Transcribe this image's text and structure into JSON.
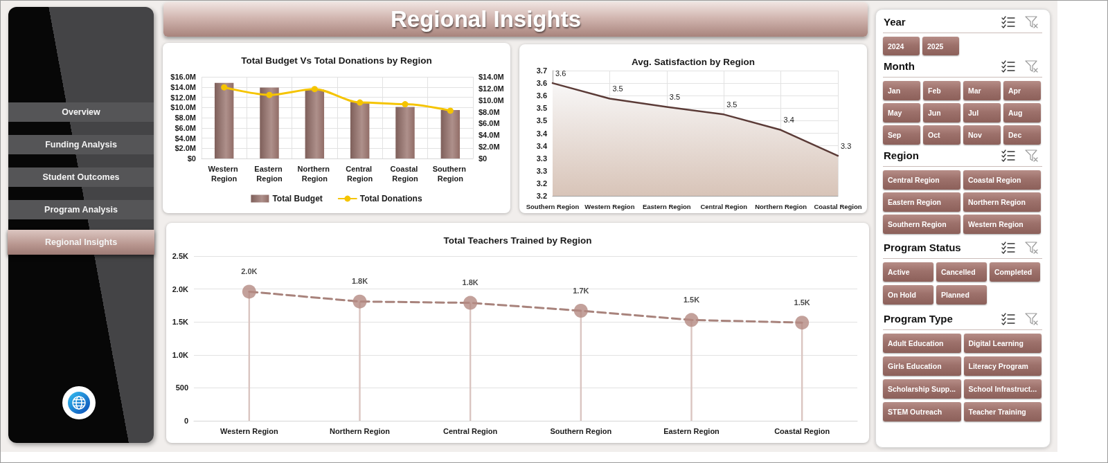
{
  "chart_data": [
    {
      "type": "other",
      "categories": [
        "Overview",
        "Funding Analysis",
        "Student Outcomes",
        "Program Analysis",
        "Regional Insights"
      ]
    },
    {
      "type": "other",
      "title": "Regional Insights"
    },
    {
      "type": "bar",
      "title": "Total Budget Vs Total Donations by Region",
      "categories": [
        "Western Region",
        "Eastern Region",
        "Northern Region",
        "Central Region",
        "Coastal Region",
        "Southern Region"
      ],
      "series": [
        {
          "name": "Total Budget",
          "color": "#9a746e",
          "values": [
            14.8,
            13.9,
            13.5,
            11.1,
            10.1,
            9.5
          ]
        },
        {
          "name": "Total Donations",
          "type": "line",
          "axis": "y2",
          "color": "#f5c400",
          "values": [
            12.2,
            10.9,
            11.9,
            9.6,
            9.3,
            8.2
          ]
        }
      ],
      "ylim": [
        0,
        16
      ],
      "yticks": [
        {
          "value": 0,
          "label": "$0"
        },
        {
          "value": 2,
          "label": "$2.0M"
        },
        {
          "value": 4,
          "label": "$4.0M"
        },
        {
          "value": 6,
          "label": "$6.0M"
        },
        {
          "value": 8,
          "label": "$8.0M"
        },
        {
          "value": 10,
          "label": "$10.0M"
        },
        {
          "value": 12,
          "label": "$12.0M"
        },
        {
          "value": 14,
          "label": "$14.0M"
        },
        {
          "value": 16,
          "label": "$16.0M"
        }
      ],
      "y2lim": [
        0,
        14
      ],
      "y2ticks": [
        {
          "value": 0,
          "label": "$0"
        },
        {
          "value": 2,
          "label": "$2.0M"
        },
        {
          "value": 4,
          "label": "$4.0M"
        },
        {
          "value": 6,
          "label": "$6.0M"
        },
        {
          "value": 8,
          "label": "$8.0M"
        },
        {
          "value": 10,
          "label": "$10.0M"
        },
        {
          "value": 12,
          "label": "$12.0M"
        },
        {
          "value": 14,
          "label": "$14.0M"
        }
      ],
      "grid": true,
      "legend": "bottom",
      "marker": "circle"
    },
    {
      "type": "area",
      "title": "Avg. Satisfaction by Region",
      "categories": [
        "Southern Region",
        "Western Region",
        "Eastern Region",
        "Central Region",
        "Northern Region",
        "Coastal Region"
      ],
      "values": [
        3.605,
        3.543,
        3.51,
        3.48,
        3.418,
        3.315
      ],
      "value_labels": [
        "3.6",
        "3.5",
        "3.5",
        "3.5",
        "3.4",
        "3.3"
      ],
      "color": "#5b3b37",
      "ylim": [
        3.155,
        3.655
      ],
      "yticks": [
        {
          "value": 3.155,
          "label": "3.2"
        },
        {
          "value": 3.205,
          "label": "3.2"
        },
        {
          "value": 3.255,
          "label": "3.3"
        },
        {
          "value": 3.305,
          "label": "3.3"
        },
        {
          "value": 3.355,
          "label": "3.4"
        },
        {
          "value": 3.405,
          "label": "3.4"
        },
        {
          "value": 3.455,
          "label": "3.5"
        },
        {
          "value": 3.505,
          "label": "3.5"
        },
        {
          "value": 3.555,
          "label": "3.6"
        },
        {
          "value": 3.605,
          "label": "3.6"
        },
        {
          "value": 3.655,
          "label": "3.7"
        }
      ],
      "grid": true
    },
    {
      "type": "lollipop",
      "title": "Total Teachers Trained by Region",
      "categories": [
        "Western Region",
        "Northern Region",
        "Central Region",
        "Southern Region",
        "Eastern Region",
        "Coastal Region"
      ],
      "series": [
        {
          "color": "#b48a82",
          "values": [
            1960,
            1810,
            1790,
            1670,
            1530,
            1490
          ],
          "value_labels": [
            "2.0K",
            "1.8K",
            "1.8K",
            "1.7K",
            "1.5K",
            "1.5K"
          ]
        },
        {
          "type": "line",
          "color": "#a8837c",
          "values": [
            1960,
            1810,
            1790,
            1670,
            1530,
            1490
          ],
          "marker": "none"
        }
      ],
      "ylim": [
        0,
        2500
      ],
      "yticks": [
        0,
        500,
        {
          "value": 1000,
          "label": "1.0K"
        },
        {
          "value": 1500,
          "label": "1.5K"
        },
        {
          "value": 2000,
          "label": "2.0K"
        },
        {
          "value": 2500,
          "label": "2.5K"
        }
      ],
      "grid": "y",
      "marker": "circle",
      "line_style": "dashed"
    },
    {
      "type": "other",
      "title": "Year",
      "categories": [
        "2024",
        "2025"
      ]
    },
    {
      "type": "other",
      "title": "Month",
      "categories": [
        "Jan",
        "Feb",
        "Mar",
        "Apr",
        "May",
        "Jun",
        "Jul",
        "Aug",
        "Sep",
        "Oct",
        "Nov",
        "Dec"
      ]
    },
    {
      "type": "other",
      "title": "Region",
      "categories": [
        "Central Region",
        "Coastal Region",
        "Eastern Region",
        "Northern Region",
        "Southern Region",
        "Western Region"
      ]
    },
    {
      "type": "other",
      "title": "Program Status",
      "categories": [
        "Active",
        "Cancelled",
        "Completed",
        "On Hold",
        "Planned"
      ]
    },
    {
      "type": "other",
      "title": "Program Type",
      "categories": [
        "Adult Education",
        "Digital Learning",
        "Girls Education",
        "Literacy Program",
        "Scholarship Supp...",
        "School Infrastruct...",
        "STEM Outreach",
        "Teacher Training"
      ]
    }
  ]
}
